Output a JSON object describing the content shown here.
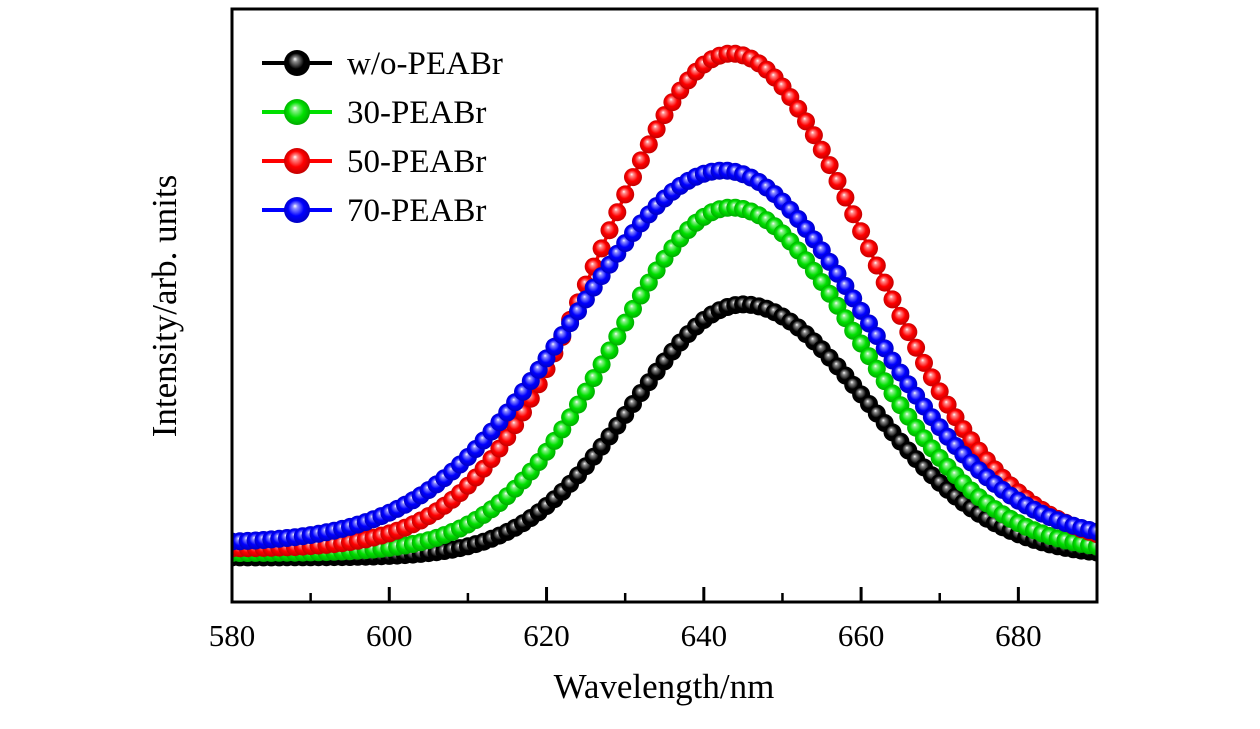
{
  "figure": {
    "background_color": "#ffffff",
    "frame_color": "#000000"
  },
  "axes": {
    "x_label": "Wavelength/nm",
    "y_label": "Intensity/arb. units",
    "x_tick_labels": [
      "580",
      "600",
      "620",
      "640",
      "660",
      "680"
    ],
    "x_tick_values": [
      580,
      600,
      620,
      640,
      660,
      680
    ],
    "x_minor_tick_values": [
      590,
      610,
      630,
      650,
      670
    ],
    "y_tick_labels": []
  },
  "legend": {
    "position": "upper-left",
    "items": [
      {
        "label": "w/o-PEABr",
        "color": "#000000"
      },
      {
        "label": "30-PEABr",
        "color": "#00e000"
      },
      {
        "label": "50-PEABr",
        "color": "#ff0000"
      },
      {
        "label": "70-PEABr",
        "color": "#0000ff"
      }
    ]
  },
  "chart_data": {
    "type": "line",
    "title": "",
    "xlabel": "Wavelength/nm",
    "ylabel": "Intensity/arb. units",
    "xlim": [
      580,
      690
    ],
    "ylim": [
      0,
      1.09
    ],
    "grid": false,
    "legend_position": "upper-left",
    "marker_style": "3d-sphere",
    "x_step_nm": 1,
    "x_samples_nm": [
      580,
      585,
      590,
      595,
      600,
      605,
      610,
      615,
      620,
      625,
      630,
      635,
      640,
      645,
      650,
      655,
      660,
      665,
      670,
      675,
      680,
      685,
      690
    ],
    "series": [
      {
        "name": "w/o-PEABr",
        "color": "#000000",
        "peak_nm": 645.0,
        "peak_intensity": 0.547,
        "baseline": 0.082,
        "amplitude": 0.465,
        "sigma_left_nm": 14.0,
        "sigma_right_nm": 16.0,
        "intensity_samples": [
          0.082,
          0.082,
          0.082,
          0.083,
          0.085,
          0.09,
          0.102,
          0.129,
          0.176,
          0.25,
          0.344,
          0.442,
          0.518,
          0.547,
          0.525,
          0.465,
          0.382,
          0.295,
          0.219,
          0.162,
          0.125,
          0.102,
          0.091
        ]
      },
      {
        "name": "30-PEABr",
        "color": "#00e000",
        "peak_nm": 643.5,
        "peak_intensity": 0.725,
        "baseline": 0.09,
        "amplitude": 0.635,
        "sigma_left_nm": 15.0,
        "sigma_right_nm": 16.5,
        "intensity_samples": [
          0.09,
          0.09,
          0.091,
          0.093,
          0.099,
          0.114,
          0.142,
          0.194,
          0.276,
          0.387,
          0.514,
          0.631,
          0.708,
          0.722,
          0.678,
          0.588,
          0.475,
          0.362,
          0.265,
          0.193,
          0.145,
          0.117,
          0.102
        ]
      },
      {
        "name": "50-PEABr",
        "color": "#ff0000",
        "peak_nm": 643.5,
        "peak_intensity": 1.008,
        "baseline": 0.098,
        "amplitude": 0.91,
        "sigma_left_nm": 16.5,
        "sigma_right_nm": 17.5,
        "intensity_samples": [
          0.099,
          0.1,
          0.103,
          0.11,
          0.126,
          0.158,
          0.214,
          0.303,
          0.428,
          0.583,
          0.749,
          0.895,
          0.988,
          1.005,
          0.947,
          0.831,
          0.681,
          0.526,
          0.387,
          0.278,
          0.201,
          0.153,
          0.125
        ]
      },
      {
        "name": "70-PEABr",
        "color": "#0000ff",
        "peak_nm": 642.5,
        "peak_intensity": 0.793,
        "baseline": 0.108,
        "amplitude": 0.685,
        "sigma_left_nm": 19.0,
        "sigma_right_nm": 18.0,
        "intensity_samples": [
          0.111,
          0.115,
          0.123,
          0.138,
          0.164,
          0.206,
          0.267,
          0.348,
          0.448,
          0.556,
          0.66,
          0.742,
          0.787,
          0.786,
          0.736,
          0.646,
          0.535,
          0.422,
          0.321,
          0.242,
          0.186,
          0.15,
          0.129
        ]
      }
    ]
  }
}
